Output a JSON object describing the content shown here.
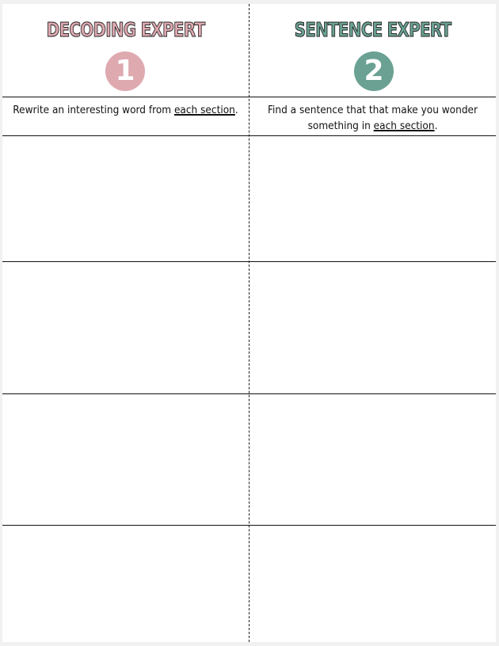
{
  "columns": [
    {
      "title": "DECODING EXPERT",
      "number": "1",
      "color": "#dfa9b0",
      "instruction_before": "Rewrite an interesting word from ",
      "instruction_emph": "each section",
      "instruction_after": "."
    },
    {
      "title": "SENTENCE EXPERT",
      "number": "2",
      "color": "#6aa193",
      "instruction_before": "Find a sentence that that make you wonder something in ",
      "instruction_emph": "each section",
      "instruction_after": "."
    }
  ]
}
